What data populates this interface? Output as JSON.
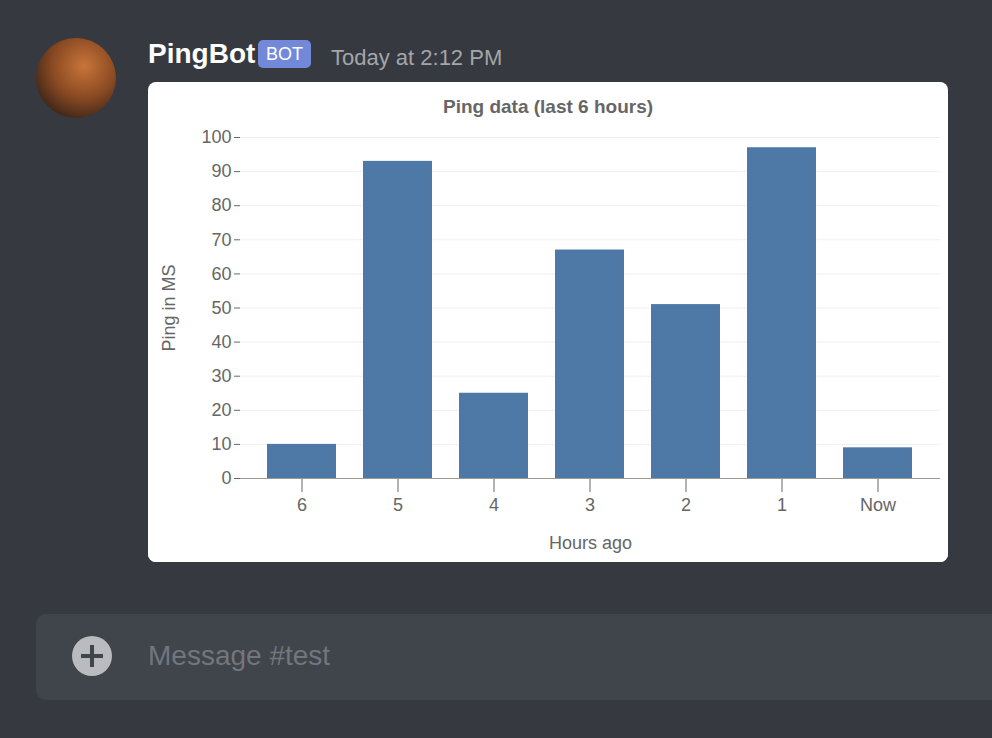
{
  "message": {
    "author": "PingBot",
    "badge": "BOT",
    "timestamp": "Today at 2:12 PM"
  },
  "chart_data": {
    "type": "bar",
    "title": "Ping data (last 6 hours)",
    "x_label": "Hours ago",
    "y_label": "Ping in MS",
    "categories": [
      "6",
      "5",
      "4",
      "3",
      "2",
      "1",
      "Now"
    ],
    "values": [
      10,
      93,
      25,
      67,
      51,
      97,
      9
    ],
    "color": "#4e79a7",
    "ylim": [
      0,
      100
    ],
    "yticks": [
      0,
      10,
      20,
      30,
      40,
      50,
      60,
      70,
      80,
      90,
      100
    ],
    "grid": true
  },
  "input": {
    "placeholder": "Message #test"
  }
}
